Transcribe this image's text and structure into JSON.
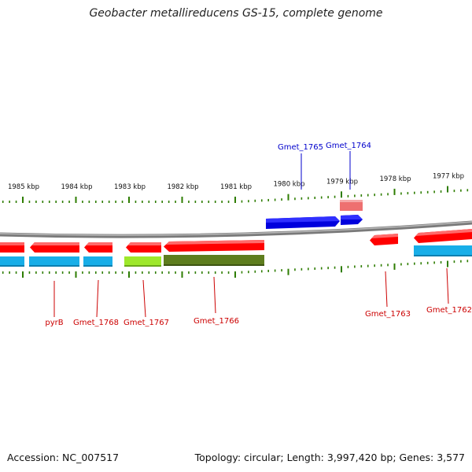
{
  "title": "Geobacter metallireducens GS-15, complete genome",
  "footer": {
    "accession": "Accession: NC_007517",
    "summary": "Topology: circular; Length: 3,997,420 bp; Genes: 3,577"
  },
  "ruler": {
    "ticks": [
      {
        "label": "1985 kbp"
      },
      {
        "label": "1984 kbp"
      },
      {
        "label": "1983 kbp"
      },
      {
        "label": "1982 kbp"
      },
      {
        "label": "1981 kbp"
      },
      {
        "label": "1980 kbp"
      },
      {
        "label": "1979 kbp"
      },
      {
        "label": "1978 kbp"
      },
      {
        "label": "1977 kbp"
      }
    ]
  },
  "genes": [
    {
      "name": "Gmet_1765",
      "strand": "+",
      "color": "#0000dd",
      "label_color": "#0000cc"
    },
    {
      "name": "Gmet_1764",
      "strand": "+",
      "color": "#0000dd",
      "label_color": "#0000cc"
    },
    {
      "name": "pyrB",
      "strand": "-",
      "color": "#ff0000",
      "label_color": "#cc0000"
    },
    {
      "name": "Gmet_1768",
      "strand": "-",
      "color": "#ff0000",
      "label_color": "#cc0000"
    },
    {
      "name": "Gmet_1767",
      "strand": "-",
      "color": "#ff0000",
      "label_color": "#cc0000"
    },
    {
      "name": "Gmet_1766",
      "strand": "-",
      "color": "#ff0000",
      "label_color": "#cc0000"
    },
    {
      "name": "Gmet_1763",
      "strand": "-",
      "color": "#ff0000",
      "label_color": "#cc0000"
    },
    {
      "name": "Gmet_1762",
      "strand": "-",
      "color": "#ff0000",
      "label_color": "#cc0000"
    }
  ],
  "colors": {
    "backbone": "#888888",
    "tick": "#2e7d00",
    "cyan_feature": "#18aee8",
    "lime_feature": "#9ee82a",
    "olive_feature": "#5e7d1e",
    "pink_feature": "#ee7070"
  }
}
